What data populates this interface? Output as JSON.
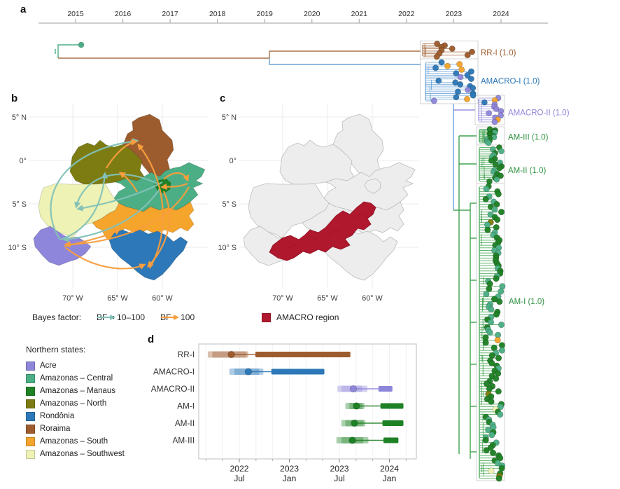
{
  "panels": {
    "a": "a",
    "b": "b",
    "c": "c",
    "d": "d"
  },
  "colors": {
    "acre": "#8e86da",
    "amazonas_central": "#4cae85",
    "amazonas_manaus": "#1f8125",
    "amazonas_north": "#7d7c12",
    "rondonia": "#2d78b8",
    "roraima": "#9d5c2e",
    "amazonas_south": "#f5a42c",
    "amazonas_southwest": "#eef2b4",
    "amacro_red": "#b0182d",
    "bf_low": "#82c2b8",
    "bf_high": "#f89e3d",
    "branch_blue": "#6aa3d8",
    "branch_purple": "#9a93e0",
    "branch_green": "#3fa24e",
    "branch_brown": "#a9724a",
    "label_green": "#2f9242",
    "axis_line": "#b0b0b0",
    "axis_text": "#2f2f2f",
    "grid": "#ebebeb",
    "clade_box": "#d3d3d3",
    "map_gray": "#ededed",
    "map_gray_border": "#bdbdbd"
  },
  "map_axis": {
    "y_ticks": [
      "5° N",
      "0°",
      "5° S",
      "10° S"
    ],
    "x_ticks": [
      "70° W",
      "65° W",
      "60° W"
    ]
  },
  "bayes_legend": {
    "title": "Bayes factor:",
    "items": [
      {
        "label": "BF = 10–100",
        "color_key": "bf_low"
      },
      {
        "label": "BF > 100",
        "color_key": "bf_high"
      }
    ]
  },
  "amacro_legend": {
    "label": "AMACRO region",
    "color_key": "amacro_red"
  },
  "states_legend": {
    "title": "Northern states:",
    "items": [
      {
        "label": "Acre",
        "color_key": "acre"
      },
      {
        "label": "Amazonas – Central",
        "color_key": "amazonas_central"
      },
      {
        "label": "Amazonas – Manaus",
        "color_key": "amazonas_manaus"
      },
      {
        "label": "Amazonas – North",
        "color_key": "amazonas_north"
      },
      {
        "label": "Rondônia",
        "color_key": "rondonia"
      },
      {
        "label": "Roraima",
        "color_key": "roraima"
      },
      {
        "label": "Amazonas – South",
        "color_key": "amazonas_south"
      },
      {
        "label": "Amazonas – Southwest",
        "color_key": "amazonas_southwest"
      }
    ]
  },
  "chart_data": [
    {
      "id": "panel_a_phylogeny",
      "type": "tree",
      "axis_years": [
        "2015",
        "2016",
        "2017",
        "2018",
        "2019",
        "2020",
        "2021",
        "2022",
        "2023",
        "2024"
      ],
      "root_time": 2014.6,
      "earliest_tip": {
        "time": 2015.1,
        "color_key": "amazonas_central"
      },
      "clades": [
        {
          "name": "RR-I",
          "label": "RR-I (1.0)",
          "posterior": 1.0,
          "label_color_key": "roraima",
          "tip_count": 9,
          "tmrca_range": [
            2022.5,
            2023.4
          ],
          "tip_mix": {
            "roraima": 9
          }
        },
        {
          "name": "AMACRO-I",
          "label": "AMACRO-I (1.0)",
          "posterior": 1.0,
          "label_color_key": "rondonia",
          "tip_count": 22,
          "tmrca_range": [
            2022.6,
            2023.4
          ],
          "tip_mix": {
            "rondonia": 15,
            "amazonas_south": 4,
            "acre": 3
          }
        },
        {
          "name": "AMACRO-II",
          "label": "AMACRO-II (1.0)",
          "posterior": 1.0,
          "label_color_key": "acre",
          "tip_count": 12,
          "tmrca_range": [
            2023.7,
            2024.0
          ],
          "tip_mix": {
            "acre": 9,
            "amazonas_south": 2,
            "rondonia": 1
          }
        },
        {
          "name": "AM-III",
          "label": "AM-III (1.0)",
          "posterior": 1.0,
          "label_color_key": "label_green",
          "tip_count": 13,
          "tmrca_range": [
            2023.7,
            2024.0
          ],
          "tip_mix": {
            "amazonas_manaus": 8,
            "amazonas_central": 5
          }
        },
        {
          "name": "AM-II",
          "label": "AM-II (1.0)",
          "posterior": 1.0,
          "label_color_key": "label_green",
          "tip_count": 19,
          "tmrca_range": [
            2023.7,
            2024.0
          ],
          "tip_mix": {
            "amazonas_manaus": 11,
            "amazonas_central": 8
          }
        },
        {
          "name": "AM-I",
          "label": "AM-I (1.0)",
          "posterior": 1.0,
          "label_color_key": "label_green",
          "tip_count": 115,
          "tmrca_range": [
            2023.7,
            2024.05
          ],
          "tip_mix": {
            "amazonas_manaus": 68,
            "amazonas_central": 41,
            "amazonas_north": 3,
            "amazonas_southwest": 2,
            "amazonas_south": 1
          }
        }
      ]
    },
    {
      "id": "panel_b_map",
      "type": "map",
      "legend_title": "Bayes factor:",
      "legend": [
        {
          "label": "BF = 10–100",
          "color_key": "bf_low"
        },
        {
          "label": "BF > 100",
          "color_key": "bf_high"
        }
      ],
      "regions": [
        "Acre",
        "Amazonas – Central",
        "Amazonas – Manaus",
        "Amazonas – North",
        "Rondônia",
        "Roraima",
        "Amazonas – South",
        "Amazonas – Southwest"
      ]
    },
    {
      "id": "panel_c_map",
      "type": "map",
      "legend": [
        {
          "label": "AMACRO region",
          "color_key": "amacro_red"
        }
      ]
    },
    {
      "id": "panel_d_tmrca",
      "type": "interval",
      "x_range": [
        2022.09,
        2024.27
      ],
      "x_ticks": [
        {
          "t": 2022.5,
          "year": "2022",
          "month": "Jul"
        },
        {
          "t": 2023.0,
          "year": "2023",
          "month": "Jan"
        },
        {
          "t": 2023.5,
          "year": "2023",
          "month": "Jul"
        },
        {
          "t": 2024.0,
          "year": "2024",
          "month": "Jan"
        }
      ],
      "rows": [
        {
          "label": "RR-I",
          "color_key": "roraima",
          "hpd95": [
            2022.185,
            2022.59
          ],
          "hpd50": [
            2022.23,
            2022.57
          ],
          "tmrca": 2022.42,
          "sampling": [
            2022.66,
            2023.61
          ]
        },
        {
          "label": "AMACRO-I",
          "color_key": "rondonia",
          "hpd95": [
            2022.4,
            2022.74
          ],
          "hpd50": [
            2022.45,
            2022.7
          ],
          "tmrca": 2022.59,
          "sampling": [
            2022.82,
            2023.35
          ]
        },
        {
          "label": "AMACRO-II",
          "color_key": "acre",
          "hpd95": [
            2023.48,
            2023.78
          ],
          "hpd50": [
            2023.52,
            2023.73
          ],
          "tmrca": 2023.64,
          "sampling": [
            2023.89,
            2024.03
          ]
        },
        {
          "label": "AM-I",
          "color_key": "amazonas_manaus",
          "hpd95": [
            2023.56,
            2023.75
          ],
          "hpd50": [
            2023.6,
            2023.73
          ],
          "tmrca": 2023.67,
          "sampling": [
            2023.91,
            2024.14
          ]
        },
        {
          "label": "AM-II",
          "color_key": "amazonas_manaus",
          "hpd95": [
            2023.52,
            2023.76
          ],
          "hpd50": [
            2023.56,
            2023.74
          ],
          "tmrca": 2023.65,
          "sampling": [
            2023.93,
            2024.14
          ]
        },
        {
          "label": "AM-III",
          "color_key": "amazonas_manaus",
          "hpd95": [
            2023.47,
            2023.79
          ],
          "hpd50": [
            2023.52,
            2023.74
          ],
          "tmrca": 2023.63,
          "sampling": [
            2023.94,
            2024.09
          ]
        }
      ]
    }
  ]
}
